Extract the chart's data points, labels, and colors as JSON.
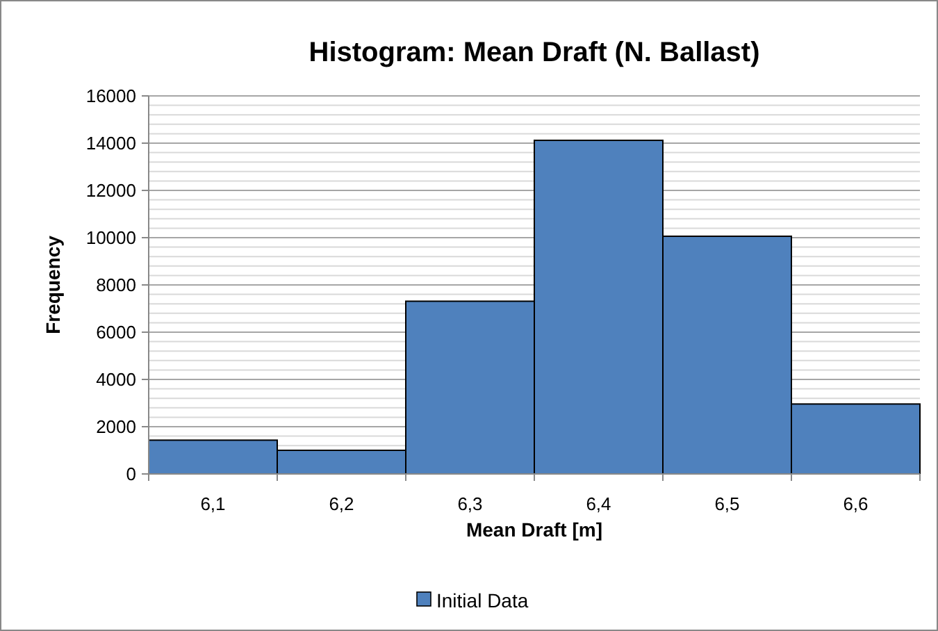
{
  "chart_data": {
    "type": "bar",
    "title": "Histogram: Mean Draft (N. Ballast)",
    "xlabel": "Mean Draft [m]",
    "ylabel": "Frequency",
    "categories": [
      "6,1",
      "6,2",
      "6,3",
      "6,4",
      "6,5",
      "6,6"
    ],
    "series": [
      {
        "name": "Initial Data",
        "color": "#4f81bd",
        "values": [
          1430,
          1000,
          7310,
          14120,
          10060,
          2960
        ]
      }
    ],
    "ylim": [
      0,
      16000
    ],
    "yticks": [
      0,
      2000,
      4000,
      6000,
      8000,
      10000,
      12000,
      14000,
      16000
    ],
    "grid": "y",
    "legend": "bottom"
  }
}
